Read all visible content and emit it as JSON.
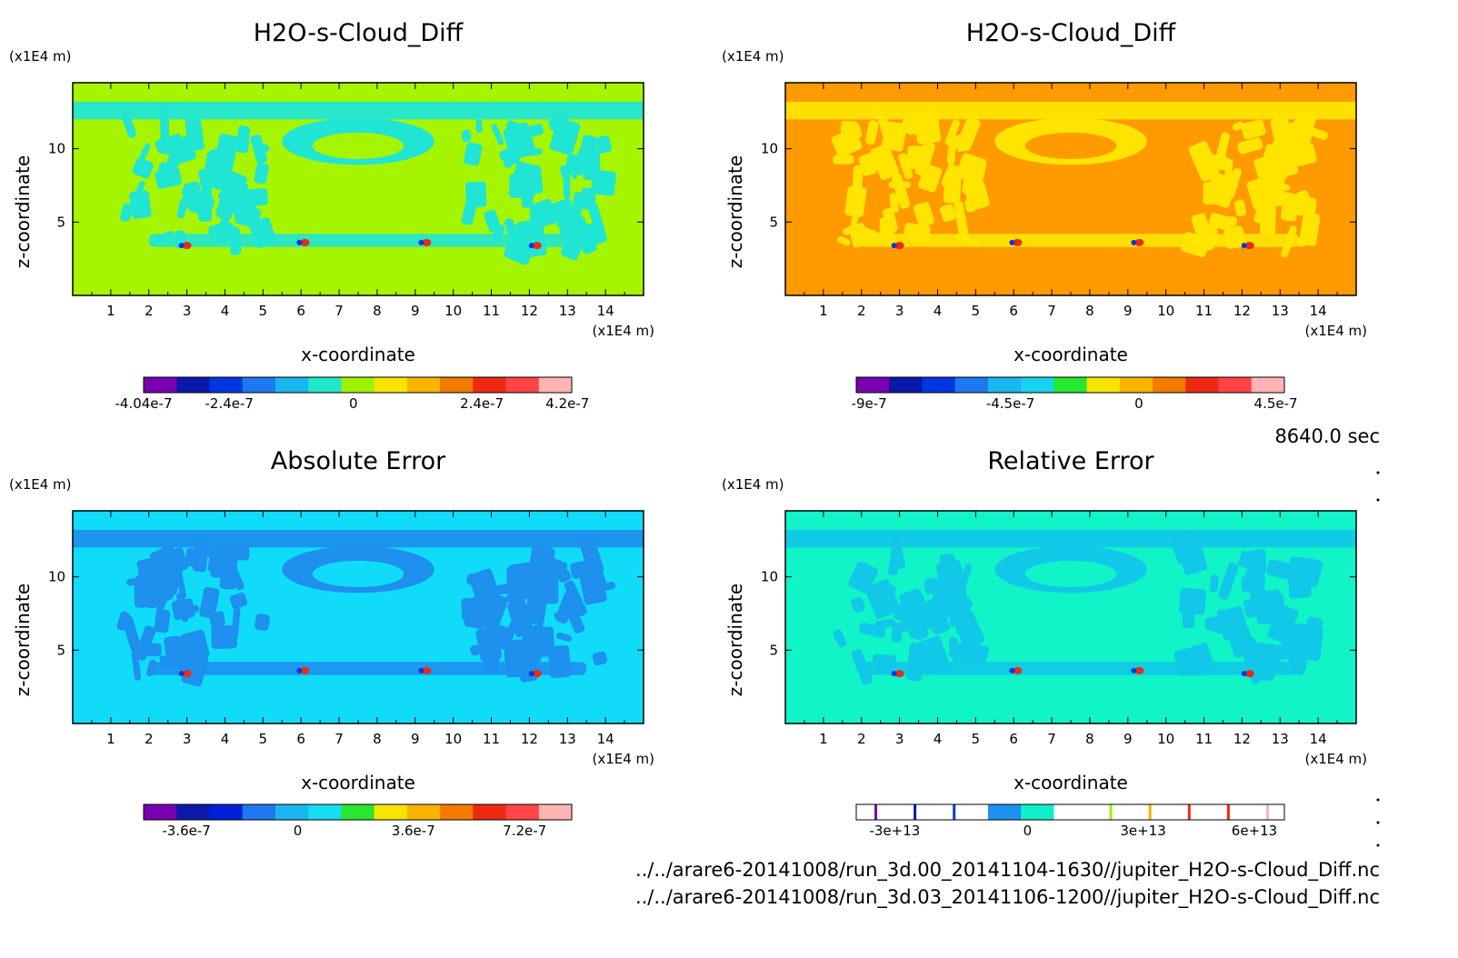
{
  "time_label": "8640.0 sec",
  "file_paths": [
    "../../arare6-20141008/run_3d.00_20141104-1630//jupiter_H2O-s-Cloud_Diff.nc",
    "../../arare6-20141008/run_3d.03_20141106-1200//jupiter_H2O-s-Cloud_Diff.nc"
  ],
  "chart_data": [
    {
      "type": "heatmap",
      "title": "H2O-s-Cloud_Diff",
      "xlabel": "x-coordinate",
      "ylabel": "z-coordinate",
      "x_unit": "(x1E4 m)",
      "z_unit": "(x1E4 m)",
      "x_ticks": [
        "1",
        "2",
        "3",
        "4",
        "5",
        "6",
        "7",
        "8",
        "9",
        "10",
        "11",
        "12",
        "13",
        "14"
      ],
      "z_ticks": [
        "5",
        "10"
      ],
      "xlim": [
        0,
        15
      ],
      "zlim": [
        0,
        14.5
      ],
      "background_color": "#a6f500",
      "pattern_color": "#21e5d4",
      "colorbar": {
        "colors": [
          "#7a00b0",
          "#0a1aa8",
          "#0038e0",
          "#1e78f0",
          "#19b6f0",
          "#20e6cc",
          "#9ef200",
          "#f7e400",
          "#f8b400",
          "#f47a00",
          "#ee2a12",
          "#ff4545",
          "#ffb4b4"
        ],
        "labels": [
          "-4.04e-7",
          "-2.4e-7",
          "0",
          "2.4e-7",
          "4.2e-7"
        ]
      }
    },
    {
      "type": "heatmap",
      "title": "H2O-s-Cloud_Diff",
      "xlabel": "x-coordinate",
      "ylabel": "z-coordinate",
      "x_unit": "(x1E4 m)",
      "z_unit": "(x1E4 m)",
      "x_ticks": [
        "1",
        "2",
        "3",
        "4",
        "5",
        "6",
        "7",
        "8",
        "9",
        "10",
        "11",
        "12",
        "13",
        "14"
      ],
      "z_ticks": [
        "5",
        "10"
      ],
      "xlim": [
        0,
        15
      ],
      "zlim": [
        0,
        14.5
      ],
      "background_color": "#ff9a00",
      "pattern_color": "#ffe400",
      "colorbar": {
        "colors": [
          "#7a00b0",
          "#0a1aa8",
          "#0038e0",
          "#1e78f0",
          "#19b6f0",
          "#19d2f0",
          "#29e630",
          "#f7e400",
          "#f8b400",
          "#f47a00",
          "#ee2a12",
          "#ff4545",
          "#ffb4b4"
        ],
        "labels": [
          "-9e-7",
          "-4.5e-7",
          "0",
          "4.5e-7"
        ]
      }
    },
    {
      "type": "heatmap",
      "title": "Absolute Error",
      "xlabel": "x-coordinate",
      "ylabel": "z-coordinate",
      "x_unit": "(x1E4 m)",
      "z_unit": "(x1E4 m)",
      "x_ticks": [
        "1",
        "2",
        "3",
        "4",
        "5",
        "6",
        "7",
        "8",
        "9",
        "10",
        "11",
        "12",
        "13",
        "14"
      ],
      "z_ticks": [
        "5",
        "10"
      ],
      "xlim": [
        0,
        15
      ],
      "zlim": [
        0,
        14.5
      ],
      "background_color": "#10dcfa",
      "pattern_color": "#1e90ee",
      "colorbar": {
        "colors": [
          "#7a00b0",
          "#0a1aa8",
          "#0020d8",
          "#1e78f0",
          "#19b6f0",
          "#18dcf2",
          "#29e630",
          "#f7e400",
          "#f8b400",
          "#f47a00",
          "#ee2a12",
          "#ff4545",
          "#ffb4b4"
        ],
        "labels": [
          "-3.6e-7",
          "0",
          "3.6e-7",
          "7.2e-7"
        ]
      }
    },
    {
      "type": "heatmap",
      "title": "Relative Error",
      "xlabel": "x-coordinate",
      "ylabel": "z-coordinate",
      "x_unit": "(x1E4 m)",
      "z_unit": "(x1E4 m)",
      "x_ticks": [
        "1",
        "2",
        "3",
        "4",
        "5",
        "6",
        "7",
        "8",
        "9",
        "10",
        "11",
        "12",
        "13",
        "14"
      ],
      "z_ticks": [
        "5",
        "10"
      ],
      "xlim": [
        0,
        15
      ],
      "zlim": [
        0,
        14.5
      ],
      "background_color": "#10f4c8",
      "pattern_color": "#12c8e8",
      "colorbar": {
        "colors": [
          "#ffffff",
          "#ffffff",
          "#ffffff",
          "#ffffff",
          "#1e90ee",
          "#10f0c8",
          "#ffffff",
          "#ffffff",
          "#ffffff",
          "#ffffff",
          "#ffffff",
          "#ffffff",
          "#ffffff"
        ],
        "markers": [
          "#7a00b0",
          "#0a1aa8",
          "#0038e0",
          "",
          "",
          "",
          "#9ef200",
          "#f8b400",
          "#ee2a12",
          "#ee2a12",
          "#ffb4b4"
        ],
        "labels": [
          "-3e+13",
          "0",
          "3e+13",
          "6e+13"
        ]
      }
    }
  ]
}
